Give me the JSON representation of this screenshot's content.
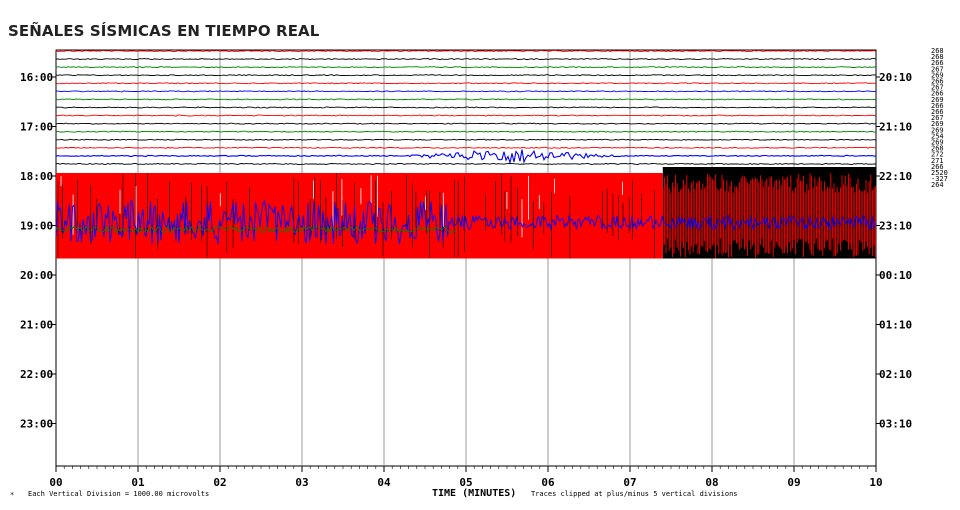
{
  "title": "SEÑALES SÍSMICAS EN TIEMPO REAL",
  "chart_data": {
    "type": "line",
    "title": "SEÑALES SÍSMICAS EN TIEMPO REAL",
    "xlabel": "TIME (MINUTES)",
    "x_ticks": [
      "00",
      "01",
      "02",
      "03",
      "04",
      "05",
      "06",
      "07",
      "08",
      "09",
      "10"
    ],
    "xlim": [
      0,
      10
    ],
    "left_time_labels": [
      "16:00",
      "17:00",
      "18:00",
      "19:00",
      "20:00",
      "21:00",
      "22:00",
      "23:00"
    ],
    "right_time_labels": [
      "20:10",
      "21:10",
      "22:10",
      "23:10",
      "00:10",
      "01:10",
      "02:10",
      "03:10"
    ],
    "trace_values": [
      "268",
      "268",
      "266",
      "267",
      "269",
      "266",
      "267",
      "266",
      "269",
      "266",
      "266",
      "267",
      "269",
      "269",
      "254",
      "269",
      "268",
      "272",
      "271",
      "266",
      "2520",
      "-327",
      "264"
    ],
    "trace_colors": [
      "#ff0000",
      "#000000",
      "#008000",
      "#000000",
      "#ff0000",
      "#0000ff",
      "#008000",
      "#000000",
      "#ff0000",
      "#000000",
      "#008000",
      "#000000",
      "#ff0000",
      "#0000ff",
      "#000000"
    ],
    "event": {
      "start_minute": 4.3,
      "end_minute": 6.9,
      "peak_minute": 5.55,
      "trace_index": 13
    },
    "saturated_section": {
      "from_hour": "18:00",
      "to_hour": "19:45",
      "black_from_minute": 7.4,
      "colors": [
        "#ff0000",
        "#000000",
        "#0000ff",
        "#008000"
      ]
    },
    "footnote_left": "Each Vertical Division = 1000.00 microvolts",
    "footnote_right": "Traces clipped at plus/minus 5 vertical divisions",
    "footnote_marker": "*",
    "grid": true
  }
}
